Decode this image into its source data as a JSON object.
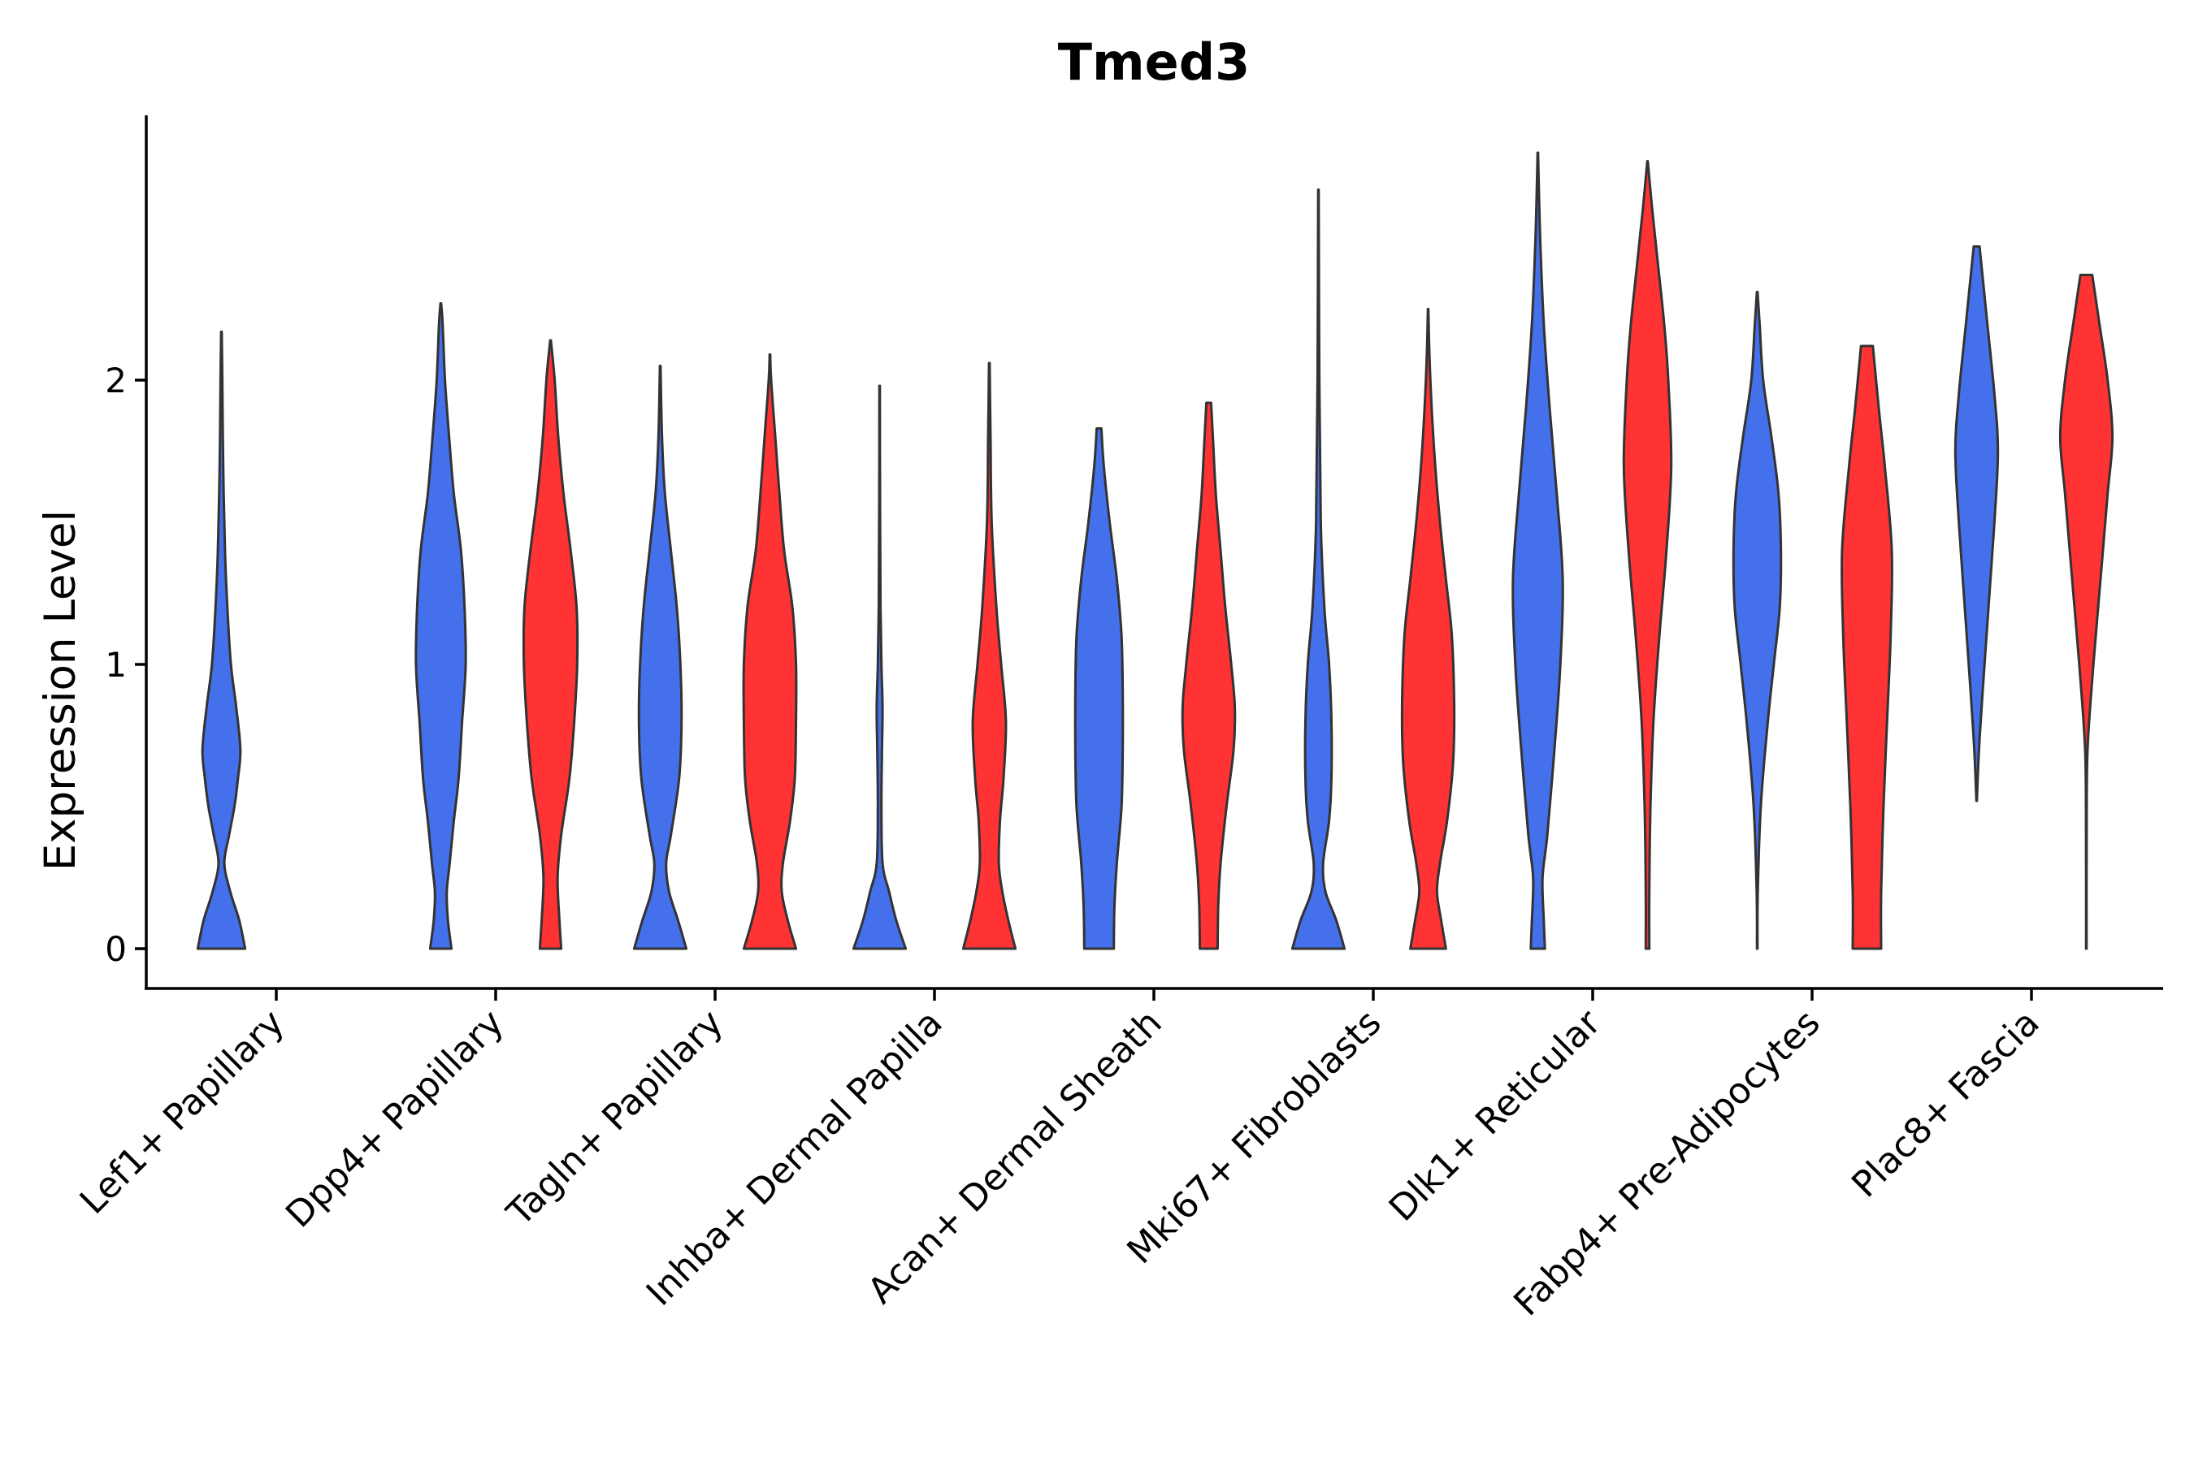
{
  "chart_data": {
    "type": "violin",
    "title": "Tmed3",
    "xlabel": "",
    "ylabel": "Expression Level",
    "ylim": [
      -0.14,
      2.94
    ],
    "yticks": [
      0,
      1,
      2
    ],
    "grid": false,
    "legend": "none",
    "series_colors": [
      "#4470EB",
      "#FF3333"
    ],
    "categories": [
      "Lef1+ Papillary",
      "Dpp4+ Papillary",
      "Tagln+ Papillary",
      "Inhba+ Dermal Papilla",
      "Acan+ Dermal Sheath",
      "Mki67+ Fibroblasts",
      "Dlk1+ Reticular",
      "Fabp4+ Pre-Adipocytes",
      "Plac8+ Fascia"
    ],
    "violins": [
      {
        "category": 0,
        "group": 0,
        "min": 0,
        "max": 2.17,
        "shape": [
          [
            0,
            0.4
          ],
          [
            0.1,
            0.3
          ],
          [
            0.2,
            0.15
          ],
          [
            0.3,
            0.05
          ],
          [
            0.4,
            0.13
          ],
          [
            0.5,
            0.22
          ],
          [
            0.6,
            0.28
          ],
          [
            0.7,
            0.32
          ],
          [
            0.85,
            0.25
          ],
          [
            1.0,
            0.16
          ],
          [
            1.2,
            0.1
          ],
          [
            1.4,
            0.06
          ],
          [
            1.7,
            0.03
          ],
          [
            2.0,
            0.015
          ],
          [
            2.17,
            0.005
          ]
        ]
      },
      {
        "category": 1,
        "group": 0,
        "min": 0,
        "max": 2.27,
        "shape": [
          [
            0,
            0.18
          ],
          [
            0.1,
            0.12
          ],
          [
            0.2,
            0.1
          ],
          [
            0.3,
            0.15
          ],
          [
            0.45,
            0.22
          ],
          [
            0.6,
            0.3
          ],
          [
            0.8,
            0.36
          ],
          [
            1.0,
            0.42
          ],
          [
            1.2,
            0.4
          ],
          [
            1.4,
            0.34
          ],
          [
            1.6,
            0.22
          ],
          [
            1.8,
            0.14
          ],
          [
            2.0,
            0.07
          ],
          [
            2.2,
            0.03
          ],
          [
            2.27,
            0.005
          ]
        ]
      },
      {
        "category": 1,
        "group": 1,
        "min": 0,
        "max": 2.14,
        "shape": [
          [
            0,
            0.18
          ],
          [
            0.1,
            0.15
          ],
          [
            0.25,
            0.12
          ],
          [
            0.4,
            0.18
          ],
          [
            0.6,
            0.32
          ],
          [
            0.8,
            0.4
          ],
          [
            1.0,
            0.45
          ],
          [
            1.2,
            0.44
          ],
          [
            1.4,
            0.34
          ],
          [
            1.6,
            0.22
          ],
          [
            1.8,
            0.13
          ],
          [
            2.0,
            0.07
          ],
          [
            2.14,
            0.005
          ]
        ]
      },
      {
        "category": 2,
        "group": 0,
        "min": 0,
        "max": 2.05,
        "shape": [
          [
            0,
            0.44
          ],
          [
            0.1,
            0.3
          ],
          [
            0.2,
            0.15
          ],
          [
            0.3,
            0.1
          ],
          [
            0.4,
            0.18
          ],
          [
            0.6,
            0.32
          ],
          [
            0.8,
            0.36
          ],
          [
            1.0,
            0.34
          ],
          [
            1.2,
            0.28
          ],
          [
            1.4,
            0.18
          ],
          [
            1.6,
            0.08
          ],
          [
            1.8,
            0.03
          ],
          [
            2.05,
            0.005
          ]
        ]
      },
      {
        "category": 2,
        "group": 1,
        "min": 0,
        "max": 2.09,
        "shape": [
          [
            0,
            0.44
          ],
          [
            0.1,
            0.3
          ],
          [
            0.2,
            0.2
          ],
          [
            0.3,
            0.22
          ],
          [
            0.45,
            0.34
          ],
          [
            0.6,
            0.42
          ],
          [
            0.8,
            0.44
          ],
          [
            1.0,
            0.44
          ],
          [
            1.2,
            0.38
          ],
          [
            1.4,
            0.24
          ],
          [
            1.6,
            0.16
          ],
          [
            1.8,
            0.09
          ],
          [
            2.0,
            0.02
          ],
          [
            2.09,
            0.005
          ]
        ]
      },
      {
        "category": 3,
        "group": 0,
        "min": 0,
        "max": 1.98,
        "shape": [
          [
            0,
            0.44
          ],
          [
            0.1,
            0.28
          ],
          [
            0.2,
            0.16
          ],
          [
            0.3,
            0.05
          ],
          [
            0.5,
            0.03
          ],
          [
            0.7,
            0.04
          ],
          [
            0.85,
            0.05
          ],
          [
            1.0,
            0.03
          ],
          [
            1.2,
            0.015
          ],
          [
            1.5,
            0.008
          ],
          [
            1.98,
            0.004
          ]
        ]
      },
      {
        "category": 3,
        "group": 1,
        "min": 0,
        "max": 2.06,
        "shape": [
          [
            0,
            0.44
          ],
          [
            0.1,
            0.32
          ],
          [
            0.2,
            0.22
          ],
          [
            0.3,
            0.16
          ],
          [
            0.45,
            0.18
          ],
          [
            0.6,
            0.24
          ],
          [
            0.8,
            0.28
          ],
          [
            1.0,
            0.2
          ],
          [
            1.2,
            0.12
          ],
          [
            1.5,
            0.04
          ],
          [
            1.8,
            0.02
          ],
          [
            2.06,
            0.005
          ]
        ]
      },
      {
        "category": 4,
        "group": 0,
        "min": 0,
        "max": 1.83,
        "shape": [
          [
            0,
            0.25
          ],
          [
            0.15,
            0.26
          ],
          [
            0.3,
            0.3
          ],
          [
            0.5,
            0.38
          ],
          [
            0.7,
            0.4
          ],
          [
            0.9,
            0.4
          ],
          [
            1.1,
            0.38
          ],
          [
            1.3,
            0.3
          ],
          [
            1.5,
            0.18
          ],
          [
            1.7,
            0.08
          ],
          [
            1.83,
            0.04
          ]
        ]
      },
      {
        "category": 4,
        "group": 1,
        "min": 0,
        "max": 1.92,
        "shape": [
          [
            0,
            0.15
          ],
          [
            0.15,
            0.16
          ],
          [
            0.3,
            0.2
          ],
          [
            0.5,
            0.3
          ],
          [
            0.7,
            0.42
          ],
          [
            0.85,
            0.44
          ],
          [
            1.0,
            0.38
          ],
          [
            1.2,
            0.28
          ],
          [
            1.4,
            0.2
          ],
          [
            1.6,
            0.12
          ],
          [
            1.8,
            0.07
          ],
          [
            1.92,
            0.04
          ]
        ]
      },
      {
        "category": 5,
        "group": 0,
        "min": 0,
        "max": 2.67,
        "shape": [
          [
            0,
            0.44
          ],
          [
            0.1,
            0.3
          ],
          [
            0.2,
            0.12
          ],
          [
            0.3,
            0.08
          ],
          [
            0.45,
            0.18
          ],
          [
            0.6,
            0.22
          ],
          [
            0.8,
            0.22
          ],
          [
            1.0,
            0.18
          ],
          [
            1.2,
            0.1
          ],
          [
            1.5,
            0.04
          ],
          [
            2.0,
            0.015
          ],
          [
            2.67,
            0.004
          ]
        ]
      },
      {
        "category": 5,
        "group": 1,
        "min": 0,
        "max": 2.25,
        "shape": [
          [
            0,
            0.3
          ],
          [
            0.1,
            0.22
          ],
          [
            0.2,
            0.15
          ],
          [
            0.3,
            0.2
          ],
          [
            0.45,
            0.32
          ],
          [
            0.65,
            0.42
          ],
          [
            0.85,
            0.44
          ],
          [
            1.1,
            0.4
          ],
          [
            1.3,
            0.3
          ],
          [
            1.5,
            0.2
          ],
          [
            1.7,
            0.12
          ],
          [
            1.9,
            0.06
          ],
          [
            2.1,
            0.02
          ],
          [
            2.25,
            0.004
          ]
        ]
      },
      {
        "category": 6,
        "group": 0,
        "min": 0,
        "max": 2.8,
        "shape": [
          [
            0,
            0.12
          ],
          [
            0.1,
            0.1
          ],
          [
            0.25,
            0.08
          ],
          [
            0.4,
            0.16
          ],
          [
            0.7,
            0.28
          ],
          [
            1.0,
            0.38
          ],
          [
            1.3,
            0.42
          ],
          [
            1.6,
            0.32
          ],
          [
            1.9,
            0.2
          ],
          [
            2.2,
            0.1
          ],
          [
            2.5,
            0.04
          ],
          [
            2.8,
            0.004
          ]
        ]
      },
      {
        "category": 6,
        "group": 1,
        "min": 0,
        "max": 2.77,
        "shape": [
          [
            0,
            0.03
          ],
          [
            0.2,
            0.03
          ],
          [
            0.5,
            0.05
          ],
          [
            0.8,
            0.1
          ],
          [
            1.1,
            0.2
          ],
          [
            1.4,
            0.32
          ],
          [
            1.7,
            0.4
          ],
          [
            2.0,
            0.35
          ],
          [
            2.2,
            0.28
          ],
          [
            2.4,
            0.18
          ],
          [
            2.6,
            0.08
          ],
          [
            2.77,
            0.004
          ]
        ]
      },
      {
        "category": 7,
        "group": 0,
        "min": 0,
        "max": 2.31,
        "shape": [
          [
            0,
            0.004
          ],
          [
            0.2,
            0.01
          ],
          [
            0.5,
            0.06
          ],
          [
            0.8,
            0.18
          ],
          [
            1.0,
            0.28
          ],
          [
            1.2,
            0.38
          ],
          [
            1.4,
            0.4
          ],
          [
            1.6,
            0.36
          ],
          [
            1.8,
            0.24
          ],
          [
            2.0,
            0.1
          ],
          [
            2.2,
            0.04
          ],
          [
            2.31,
            0.005
          ]
        ]
      },
      {
        "category": 7,
        "group": 1,
        "min": 0,
        "max": 2.12,
        "shape": [
          [
            0,
            0.24
          ],
          [
            0.2,
            0.24
          ],
          [
            0.5,
            0.28
          ],
          [
            0.8,
            0.34
          ],
          [
            1.1,
            0.4
          ],
          [
            1.4,
            0.42
          ],
          [
            1.7,
            0.3
          ],
          [
            1.9,
            0.2
          ],
          [
            2.12,
            0.1
          ]
        ]
      },
      {
        "category": 8,
        "group": 0,
        "min": 0.52,
        "max": 2.47,
        "shape": [
          [
            0.52,
            0.004
          ],
          [
            0.7,
            0.04
          ],
          [
            0.9,
            0.1
          ],
          [
            1.2,
            0.2
          ],
          [
            1.5,
            0.3
          ],
          [
            1.75,
            0.36
          ],
          [
            1.95,
            0.3
          ],
          [
            2.2,
            0.18
          ],
          [
            2.47,
            0.05
          ]
        ]
      },
      {
        "category": 8,
        "group": 1,
        "min": 0,
        "max": 2.37,
        "shape": [
          [
            0,
            0.004
          ],
          [
            0.4,
            0.005
          ],
          [
            0.7,
            0.02
          ],
          [
            1.0,
            0.12
          ],
          [
            1.3,
            0.24
          ],
          [
            1.6,
            0.36
          ],
          [
            1.8,
            0.44
          ],
          [
            2.0,
            0.36
          ],
          [
            2.2,
            0.22
          ],
          [
            2.37,
            0.1
          ]
        ]
      }
    ]
  }
}
